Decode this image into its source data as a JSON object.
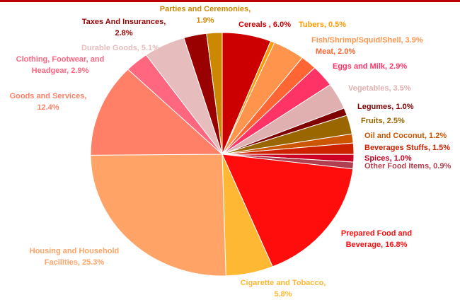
{
  "chart_data": {
    "type": "pie",
    "values": [
      6.0,
      0.5,
      3.9,
      2.0,
      2.9,
      3.5,
      1.0,
      2.5,
      1.2,
      1.5,
      1.0,
      0.9,
      16.8,
      5.8,
      25.3,
      12.4,
      2.9,
      5.1,
      2.8,
      1.9
    ],
    "value_labels": [
      "Cereals , 6.0%",
      "Tubers, 0.5%",
      "Fish/Shrimp/Squid/Shell, 3.9%",
      "Meat, 2.0%",
      "Eggs and Milk, 2.9%",
      "Vegetables, 3.5%",
      "Legumes, 1.0%",
      "Fruits, 2.5%",
      "Oil and Coconut, 1.2%",
      "Beverages Stuffs, 1.5%",
      "Spices, 1.0%",
      "Other Food Items, 0.9%",
      "Prepared Food and\nBeverage, 16.8%",
      "Cigarette and Tobacco,\n5.8%",
      "Housing and Household\nFacilities, 25.3%",
      "Goods and Services,\n12.4%",
      "Clothing, Footwear, and\nHeadgear, 2.9%",
      "Durable Goods, 5.1%",
      "Taxes And Insurances,\n2.8%",
      "Parties and Ceremonies,\n1.9%"
    ],
    "colors": [
      "#cc0000",
      "#ff9900",
      "#ff944d",
      "#ff6633",
      "#ff3366",
      "#e0b0b0",
      "#800000",
      "#996600",
      "#cc5500",
      "#cc2200",
      "#cc0022",
      "#b04050",
      "#ff0d0d",
      "#ffb833",
      "#ffa366",
      "#ff8066",
      "#ff6680",
      "#e6bcbc",
      "#990000",
      "#cc8800"
    ]
  }
}
